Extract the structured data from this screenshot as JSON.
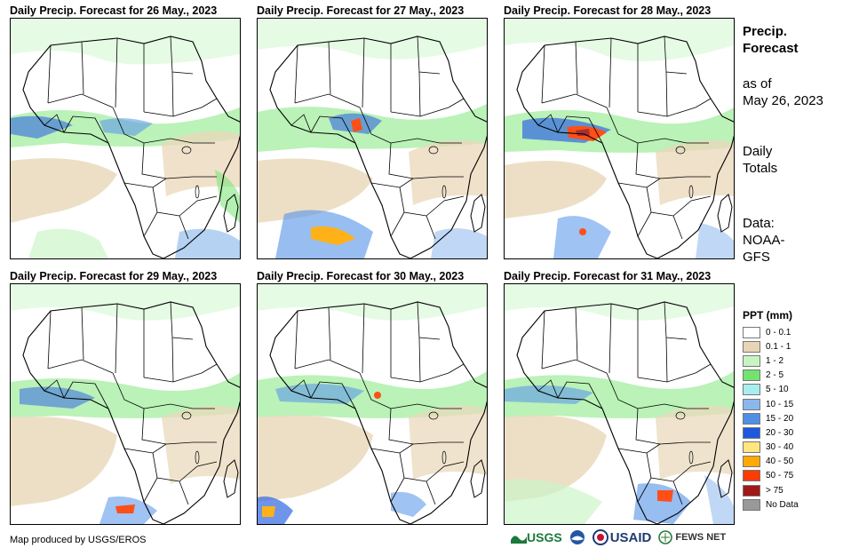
{
  "panels": [
    {
      "title": "Daily Precip. Forecast for 26 May., 2023"
    },
    {
      "title": "Daily Precip. Forecast for 27 May., 2023"
    },
    {
      "title": "Daily Precip. Forecast for 28 May., 2023"
    },
    {
      "title": "Daily Precip. Forecast for 29 May., 2023"
    },
    {
      "title": "Daily Precip. Forecast for 30 May., 2023"
    },
    {
      "title": "Daily Precip. Forecast for 31 May., 2023"
    }
  ],
  "side": {
    "title_line1": "Precip.",
    "title_line2": "Forecast",
    "asof_line1": "as of",
    "asof_line2": "May 26, 2023",
    "totals_line1": "Daily",
    "totals_line2": "Totals",
    "data_line1": "Data:",
    "data_line2": "NOAA-",
    "data_line3": "GFS"
  },
  "legend": {
    "title": "PPT (mm)",
    "items": [
      {
        "label": "0 - 0.1",
        "color": "#ffffff"
      },
      {
        "label": "0.1 - 1",
        "color": "#e8d5b5"
      },
      {
        "label": "1 - 2",
        "color": "#c6f5c3"
      },
      {
        "label": "2 - 5",
        "color": "#73e36f"
      },
      {
        "label": "5 - 10",
        "color": "#a8eeee"
      },
      {
        "label": "10 - 15",
        "color": "#8ab8ec"
      },
      {
        "label": "15 - 20",
        "color": "#4f8fe8"
      },
      {
        "label": "20 - 30",
        "color": "#1d58de"
      },
      {
        "label": "30 - 40",
        "color": "#ffe680"
      },
      {
        "label": "40 - 50",
        "color": "#ffaa00"
      },
      {
        "label": "50 - 75",
        "color": "#ff3c00"
      },
      {
        "label": "> 75",
        "color": "#a01919"
      },
      {
        "label": "No Data",
        "color": "#999999"
      }
    ]
  },
  "footer": {
    "credit": "Map produced by USGS/EROS",
    "logo_usgs": "USGS",
    "logo_noaa": "NOAA",
    "logo_usaid": "USAID",
    "logo_fews": "FEWS NET"
  }
}
